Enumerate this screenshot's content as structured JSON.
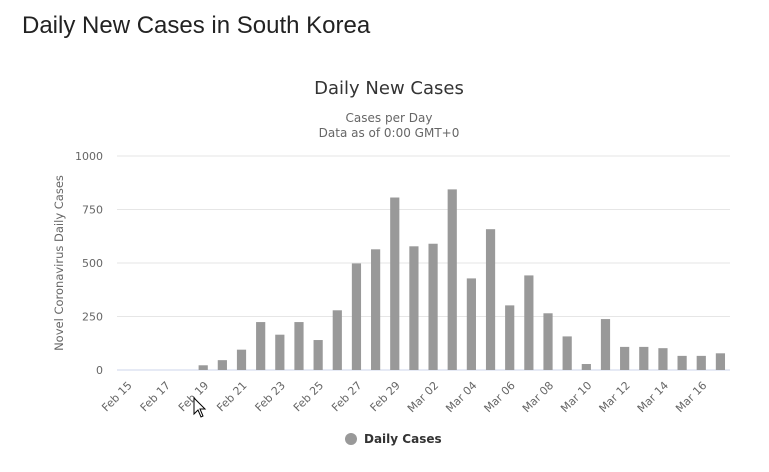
{
  "page": {
    "heading": "Daily New Cases in South Korea"
  },
  "chart_data": {
    "type": "bar",
    "title": "Daily New Cases",
    "subtitle_lines": [
      "Cases per Day",
      "Data as of 0:00 GMT+0"
    ],
    "ylabel": "Novel Coronavirus Daily Cases",
    "xlabel": "",
    "ylim": [
      0,
      1000
    ],
    "yticks": [
      0,
      250,
      500,
      750,
      1000
    ],
    "grid": true,
    "legend_position": "bottom-center",
    "categories": [
      "Feb 15",
      "Feb 16",
      "Feb 17",
      "Feb 18",
      "Feb 19",
      "Feb 20",
      "Feb 21",
      "Feb 22",
      "Feb 23",
      "Feb 24",
      "Feb 25",
      "Feb 26",
      "Feb 27",
      "Feb 28",
      "Feb 29",
      "Mar 01",
      "Mar 02",
      "Mar 03",
      "Mar 04",
      "Mar 05",
      "Mar 06",
      "Mar 07",
      "Mar 08",
      "Mar 09",
      "Mar 10",
      "Mar 11",
      "Mar 12",
      "Mar 13",
      "Mar 14",
      "Mar 15",
      "Mar 16",
      "Mar 17"
    ],
    "tick_labels": [
      "Feb 15",
      "Feb 17",
      "Feb 19",
      "Feb 21",
      "Feb 23",
      "Feb 25",
      "Feb 27",
      "Feb 29",
      "Mar 02",
      "Mar 04",
      "Mar 06",
      "Mar 08",
      "Mar 10",
      "Mar 12",
      "Mar 14",
      "Mar 16"
    ],
    "series": [
      {
        "name": "Daily Cases",
        "color": "#999999",
        "values": [
          0,
          0,
          0,
          0,
          22,
          46,
          95,
          224,
          165,
          224,
          140,
          279,
          498,
          564,
          806,
          578,
          590,
          844,
          428,
          658,
          302,
          442,
          265,
          157,
          28,
          238,
          108,
          108,
          102,
          66,
          66,
          78
        ]
      }
    ]
  }
}
